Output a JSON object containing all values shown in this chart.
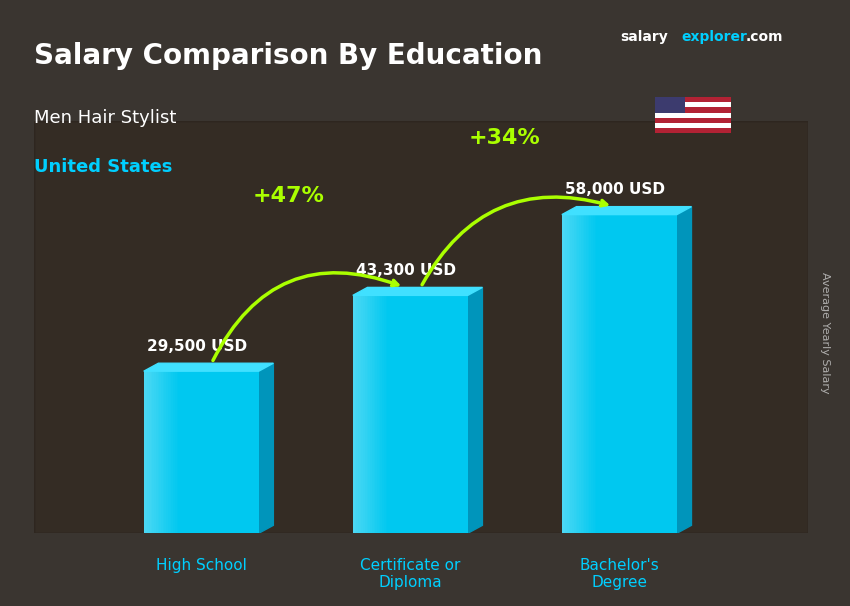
{
  "title_line1": "Salary Comparison By Education",
  "subtitle1": "Men Hair Stylist",
  "subtitle2": "United States",
  "categories": [
    "High School",
    "Certificate or\nDiploma",
    "Bachelor's\nDegree"
  ],
  "values": [
    29500,
    43300,
    58000
  ],
  "value_labels": [
    "29,500 USD",
    "43,300 USD",
    "58,000 USD"
  ],
  "pct_labels": [
    "+47%",
    "+34%"
  ],
  "bar_color_top": "#00cfff",
  "bar_color_bottom": "#0090cc",
  "bar_color_side": "#007ab0",
  "arrow_color": "#aaff00",
  "title_color": "#ffffff",
  "subtitle1_color": "#ffffff",
  "subtitle2_color": "#00cfff",
  "value_label_color": "#ffffff",
  "pct_color": "#aaff00",
  "xlabel_color": "#00cfff",
  "bg_color": "#2a2a2a",
  "ylabel_text": "Average Yearly Salary",
  "brand_salary": "salary",
  "brand_explorer": "explorer",
  "brand_com": ".com",
  "figsize": [
    8.5,
    6.06
  ],
  "dpi": 100
}
